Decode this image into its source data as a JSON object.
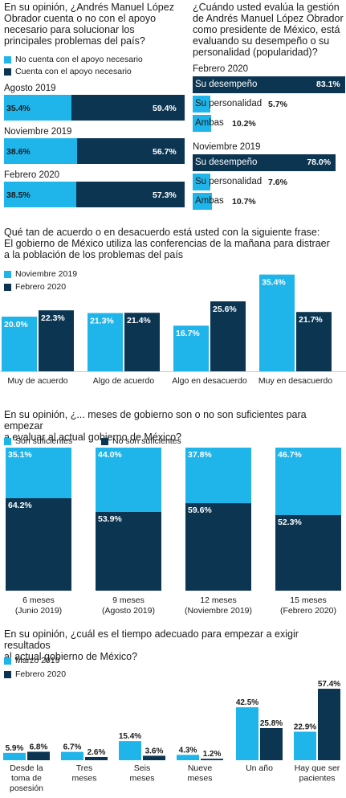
{
  "colors": {
    "light": "#1fb4ea",
    "dark": "#0c3552"
  },
  "chart_data": [
    {
      "type": "bar",
      "orientation": "horizontal-stacked",
      "title": "En su opinión, ¿Andrés Manuel López Obrador cuenta o no con el apoyo necesario para solucionar los principales problemas del país?",
      "legend": [
        "No cuenta con el apoyo necesario",
        "Cuenta con el apoyo necesario"
      ],
      "categories": [
        "Agosto 2019",
        "Noviembre 2019",
        "Febrero 2020"
      ],
      "series": [
        {
          "name": "No cuenta con el apoyo necesario",
          "values": [
            35.4,
            38.6,
            38.5
          ],
          "labels": [
            "35.4%",
            "38.6%",
            "38.5%"
          ]
        },
        {
          "name": "Cuenta con el apoyo necesario",
          "values": [
            59.4,
            56.7,
            57.3
          ],
          "labels": [
            "59.4%",
            "56.7%",
            "57.3%"
          ]
        }
      ]
    },
    {
      "type": "bar",
      "orientation": "horizontal",
      "title": "¿Cuándo usted evalúa la gestión de Andrés Manuel López Obrador como presidente de México, está evaluando su desempeño o su personalidad (popularidad)?",
      "groups": [
        {
          "period": "Febrero 2020",
          "items": [
            {
              "label": "Su desempeño",
              "value": 83.1,
              "text": "83.1%"
            },
            {
              "label": "Su personalidad",
              "value": 5.7,
              "text": "5.7%"
            },
            {
              "label": "Ambas",
              "value": 10.2,
              "text": "10.2%"
            }
          ]
        },
        {
          "period": "Noviembre 2019",
          "items": [
            {
              "label": "Su desempeño",
              "value": 78.0,
              "text": "78.0%"
            },
            {
              "label": "Su personalidad",
              "value": 7.6,
              "text": "7.6%"
            },
            {
              "label": "Ambas",
              "value": 10.7,
              "text": "10.7%"
            }
          ]
        }
      ]
    },
    {
      "type": "bar",
      "title_lines": [
        "Qué tan de acuerdo o en desacuerdo está usted con la siguiente frase:",
        "El gobierno de México utiliza las conferencias de la mañana para distraer",
        "a la población de los problemas del país"
      ],
      "legend": [
        "Noviembre 2019",
        "Febrero 2020"
      ],
      "categories": [
        "Muy de acuerdo",
        "Algo de acuerdo",
        "Algo en desacuerdo",
        "Muy en desacuerdo"
      ],
      "series": [
        {
          "name": "Noviembre 2019",
          "values": [
            20.0,
            21.3,
            16.7,
            35.4
          ],
          "labels": [
            "20.0%",
            "21.3%",
            "16.7%",
            "35.4%"
          ]
        },
        {
          "name": "Febrero 2020",
          "values": [
            22.3,
            21.4,
            25.6,
            21.7
          ],
          "labels": [
            "22.3%",
            "21.4%",
            "25.6%",
            "21.7%"
          ]
        }
      ]
    },
    {
      "type": "bar",
      "orientation": "vertical-stacked",
      "title_lines": [
        "En su opinión, ¿... meses de gobierno son o no son suficientes para empezar",
        "a evaluar al actual gobierno de México?"
      ],
      "legend": [
        "Son suficientes",
        "No son suficientes"
      ],
      "categories": [
        {
          "line1": "6 meses",
          "line2": "(Junio 2019)"
        },
        {
          "line1": "9 meses",
          "line2": "(Agosto 2019)"
        },
        {
          "line1": "12 meses",
          "line2": "(Noviembre 2019)"
        },
        {
          "line1": "15 meses",
          "line2": "(Febrero 2020)"
        }
      ],
      "series": [
        {
          "name": "Son suficientes",
          "values": [
            35.1,
            44.0,
            37.8,
            46.7
          ],
          "labels": [
            "35.1%",
            "44.0%",
            "37.8%",
            "46.7%"
          ]
        },
        {
          "name": "No son suficientes",
          "values": [
            64.2,
            53.9,
            59.6,
            52.3
          ],
          "labels": [
            "64.2%",
            "53.9%",
            "59.6%",
            "52.3%"
          ]
        }
      ]
    },
    {
      "type": "bar",
      "title_lines": [
        "En su opinión, ¿cuál es el tiempo adecuado para empezar a exigir resultados",
        "al actual gobierno de México?"
      ],
      "legend": [
        "Marzo 2019",
        "Febrero 2020"
      ],
      "categories": [
        [
          "Desde la",
          "toma de",
          "posesión"
        ],
        [
          "Tres",
          "meses"
        ],
        [
          "Seis",
          "meses"
        ],
        [
          "Nueve",
          "meses"
        ],
        [
          "Un año"
        ],
        [
          "Hay que ser",
          "pacientes"
        ]
      ],
      "series": [
        {
          "name": "Marzo 2019",
          "values": [
            5.9,
            6.7,
            15.4,
            4.3,
            42.5,
            22.9
          ],
          "labels": [
            "5.9%",
            "6.7%",
            "15.4%",
            "4.3%",
            "42.5%",
            "22.9%"
          ]
        },
        {
          "name": "Febrero 2020",
          "values": [
            6.8,
            2.6,
            3.6,
            1.2,
            25.8,
            57.4
          ],
          "labels": [
            "6.8%",
            "2.6%",
            "3.6%",
            "1.2%",
            "25.8%",
            "57.4%"
          ]
        }
      ]
    }
  ]
}
